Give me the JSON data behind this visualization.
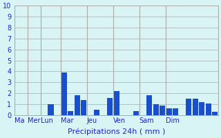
{
  "bar_values": [
    0,
    0,
    0,
    0,
    0,
    1.0,
    0,
    3.9,
    0.4,
    1.8,
    1.4,
    0,
    0.5,
    0,
    1.55,
    2.2,
    0,
    0,
    0.35,
    0,
    1.8,
    1.0,
    0.9,
    0.65,
    0.6,
    0,
    1.5,
    1.5,
    1.2,
    1.1,
    0.3
  ],
  "num_bars": 31,
  "day_boundaries": [
    0,
    2,
    4,
    7,
    11,
    15,
    19,
    23,
    31
  ],
  "tick_labels": [
    "Ma",
    "Mer",
    "Lun",
    "Mar",
    "Jeu",
    "Ven",
    "Sam",
    "Dim"
  ],
  "xlabel": "Précipitations 24h ( mm )",
  "ylim": [
    0,
    10
  ],
  "yticks": [
    0,
    1,
    2,
    3,
    4,
    5,
    6,
    7,
    8,
    9,
    10
  ],
  "bar_color": "#1a4fcc",
  "background_color": "#d8f4f4",
  "grid_color": "#aaaaaa",
  "text_color": "#2222cc",
  "xlabel_fontsize": 8,
  "tick_fontsize": 7
}
